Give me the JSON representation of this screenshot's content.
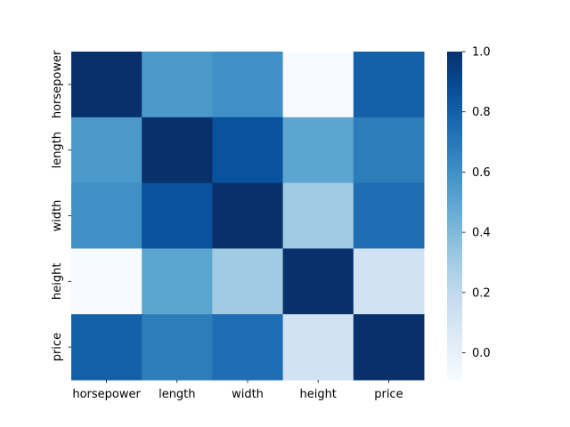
{
  "chart_data": {
    "type": "heatmap",
    "title": "",
    "xlabel": "",
    "ylabel": "",
    "x": [
      "horsepower",
      "length",
      "width",
      "height",
      "price"
    ],
    "y": [
      "horsepower",
      "length",
      "width",
      "height",
      "price"
    ],
    "values": [
      [
        1.0,
        0.56,
        0.6,
        -0.09,
        0.8
      ],
      [
        0.56,
        1.0,
        0.86,
        0.5,
        0.68
      ],
      [
        0.6,
        0.86,
        1.0,
        0.31,
        0.74
      ],
      [
        -0.09,
        0.5,
        0.31,
        1.0,
        0.12
      ],
      [
        0.8,
        0.68,
        0.74,
        0.12,
        1.0
      ]
    ],
    "colorbar": {
      "min": -0.09,
      "max": 1.0,
      "ticks": [
        0.0,
        0.2,
        0.4,
        0.6,
        0.8,
        1.0
      ],
      "tick_labels": [
        "0.0",
        "0.2",
        "0.4",
        "0.6",
        "0.8",
        "1.0"
      ],
      "colormap": "Blues"
    },
    "grid": false
  }
}
